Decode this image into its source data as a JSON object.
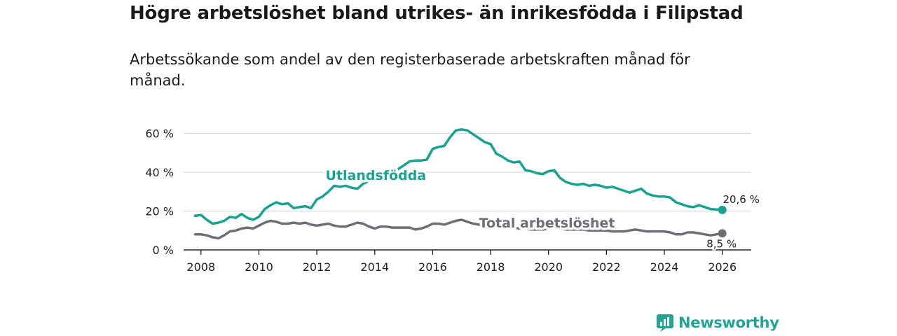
{
  "title": "Högre arbetslöshet bland utrikes- än inrikesfödda i Filipstad",
  "subtitle": "Arbetssökande som andel av den registerbaserade arbetskraften månad för månad.",
  "brand": "Newsworthy",
  "colors": {
    "foreign": "#17a391",
    "total": "#6e6e76",
    "grid": "#d9d9d9",
    "axis": "#222222",
    "brand": "#23a596"
  },
  "chart_data": {
    "type": "line",
    "title": "Högre arbetslöshet bland utrikes- än inrikesfödda i Filipstad",
    "xlabel": "",
    "ylabel": "",
    "xlim": [
      2007.4,
      2027.0
    ],
    "ylim": [
      0,
      60
    ],
    "x_ticks": [
      2008,
      2010,
      2012,
      2014,
      2016,
      2018,
      2020,
      2022,
      2024,
      2026
    ],
    "x_tick_labels": [
      "2008",
      "2010",
      "2012",
      "2014",
      "2016",
      "2018",
      "2020",
      "2022",
      "2024",
      "2026"
    ],
    "y_ticks": [
      0,
      20,
      40,
      60
    ],
    "y_tick_labels": [
      "0 %",
      "20 %",
      "40 %",
      "60 %"
    ],
    "grid": true,
    "series": [
      {
        "name": "Utlandsfödda",
        "label": "Utlandsfödda",
        "end_label": "20,6 %",
        "color": "#17a391",
        "points": [
          [
            2007.8,
            17.5
          ],
          [
            2008.0,
            18.0
          ],
          [
            2008.2,
            15.5
          ],
          [
            2008.4,
            13.5
          ],
          [
            2008.6,
            14.0
          ],
          [
            2008.8,
            15.0
          ],
          [
            2009.0,
            17.0
          ],
          [
            2009.2,
            16.5
          ],
          [
            2009.4,
            18.5
          ],
          [
            2009.6,
            16.5
          ],
          [
            2009.8,
            15.5
          ],
          [
            2010.0,
            17.0
          ],
          [
            2010.2,
            21.0
          ],
          [
            2010.4,
            23.0
          ],
          [
            2010.6,
            24.5
          ],
          [
            2010.8,
            23.5
          ],
          [
            2011.0,
            24.0
          ],
          [
            2011.2,
            21.5
          ],
          [
            2011.4,
            22.0
          ],
          [
            2011.6,
            22.5
          ],
          [
            2011.8,
            21.5
          ],
          [
            2012.0,
            26.0
          ],
          [
            2012.2,
            27.5
          ],
          [
            2012.4,
            30.0
          ],
          [
            2012.6,
            33.0
          ],
          [
            2012.8,
            32.5
          ],
          [
            2013.0,
            33.0
          ],
          [
            2013.2,
            32.0
          ],
          [
            2013.4,
            31.5
          ],
          [
            2013.6,
            34.0
          ],
          [
            2013.8,
            35.5
          ],
          [
            2014.0,
            36.5
          ],
          [
            2014.2,
            37.5
          ],
          [
            2014.4,
            38.5
          ],
          [
            2014.6,
            40.0
          ],
          [
            2014.8,
            41.5
          ],
          [
            2015.0,
            43.5
          ],
          [
            2015.2,
            45.5
          ],
          [
            2015.4,
            46.0
          ],
          [
            2015.6,
            46.0
          ],
          [
            2015.8,
            46.5
          ],
          [
            2016.0,
            52.0
          ],
          [
            2016.2,
            53.0
          ],
          [
            2016.4,
            53.5
          ],
          [
            2016.6,
            58.0
          ],
          [
            2016.8,
            61.5
          ],
          [
            2017.0,
            62.0
          ],
          [
            2017.2,
            61.5
          ],
          [
            2017.4,
            59.5
          ],
          [
            2017.6,
            57.5
          ],
          [
            2017.8,
            55.5
          ],
          [
            2018.0,
            54.5
          ],
          [
            2018.2,
            49.5
          ],
          [
            2018.4,
            48.0
          ],
          [
            2018.6,
            46.0
          ],
          [
            2018.8,
            45.0
          ],
          [
            2019.0,
            45.5
          ],
          [
            2019.2,
            41.0
          ],
          [
            2019.4,
            40.5
          ],
          [
            2019.6,
            39.5
          ],
          [
            2019.8,
            39.0
          ],
          [
            2020.0,
            40.5
          ],
          [
            2020.2,
            41.0
          ],
          [
            2020.4,
            37.0
          ],
          [
            2020.6,
            35.0
          ],
          [
            2020.8,
            34.0
          ],
          [
            2021.0,
            33.5
          ],
          [
            2021.2,
            34.0
          ],
          [
            2021.4,
            33.0
          ],
          [
            2021.6,
            33.5
          ],
          [
            2021.8,
            33.0
          ],
          [
            2022.0,
            32.0
          ],
          [
            2022.2,
            32.5
          ],
          [
            2022.4,
            31.5
          ],
          [
            2022.6,
            30.5
          ],
          [
            2022.8,
            29.5
          ],
          [
            2023.0,
            30.5
          ],
          [
            2023.2,
            31.5
          ],
          [
            2023.4,
            29.0
          ],
          [
            2023.6,
            28.0
          ],
          [
            2023.8,
            27.5
          ],
          [
            2024.0,
            27.5
          ],
          [
            2024.2,
            27.0
          ],
          [
            2024.4,
            24.5
          ],
          [
            2024.6,
            23.5
          ],
          [
            2024.8,
            22.5
          ],
          [
            2025.0,
            22.0
          ],
          [
            2025.2,
            23.0
          ],
          [
            2025.4,
            22.0
          ],
          [
            2025.6,
            21.0
          ],
          [
            2025.8,
            20.8
          ],
          [
            2026.0,
            20.6
          ]
        ]
      },
      {
        "name": "Total arbetslöshet",
        "label": "Total arbetslöshet",
        "end_label": "8,5 %",
        "color": "#6e6e76",
        "points": [
          [
            2007.8,
            8.0
          ],
          [
            2008.0,
            8.0
          ],
          [
            2008.2,
            7.5
          ],
          [
            2008.4,
            6.5
          ],
          [
            2008.6,
            6.0
          ],
          [
            2008.8,
            7.5
          ],
          [
            2009.0,
            9.5
          ],
          [
            2009.2,
            10.0
          ],
          [
            2009.4,
            11.0
          ],
          [
            2009.6,
            11.5
          ],
          [
            2009.8,
            11.0
          ],
          [
            2010.0,
            12.5
          ],
          [
            2010.2,
            14.0
          ],
          [
            2010.4,
            15.0
          ],
          [
            2010.6,
            14.5
          ],
          [
            2010.8,
            13.5
          ],
          [
            2011.0,
            13.5
          ],
          [
            2011.2,
            14.0
          ],
          [
            2011.4,
            13.5
          ],
          [
            2011.6,
            14.0
          ],
          [
            2011.8,
            13.0
          ],
          [
            2012.0,
            12.5
          ],
          [
            2012.2,
            13.0
          ],
          [
            2012.4,
            13.5
          ],
          [
            2012.6,
            12.5
          ],
          [
            2012.8,
            12.0
          ],
          [
            2013.0,
            12.0
          ],
          [
            2013.2,
            13.0
          ],
          [
            2013.4,
            14.0
          ],
          [
            2013.6,
            13.5
          ],
          [
            2013.8,
            12.0
          ],
          [
            2014.0,
            11.0
          ],
          [
            2014.2,
            12.0
          ],
          [
            2014.4,
            12.0
          ],
          [
            2014.6,
            11.5
          ],
          [
            2014.8,
            11.5
          ],
          [
            2015.0,
            11.5
          ],
          [
            2015.2,
            11.5
          ],
          [
            2015.4,
            10.5
          ],
          [
            2015.6,
            11.0
          ],
          [
            2015.8,
            12.0
          ],
          [
            2016.0,
            13.5
          ],
          [
            2016.2,
            13.5
          ],
          [
            2016.4,
            13.0
          ],
          [
            2016.6,
            14.0
          ],
          [
            2016.8,
            15.0
          ],
          [
            2017.0,
            15.5
          ],
          [
            2017.2,
            14.5
          ],
          [
            2017.4,
            13.5
          ],
          [
            2017.6,
            13.0
          ],
          [
            2017.8,
            12.5
          ],
          [
            2018.0,
            12.5
          ],
          [
            2018.2,
            12.0
          ],
          [
            2018.4,
            11.5
          ],
          [
            2018.6,
            11.5
          ],
          [
            2018.8,
            11.5
          ],
          [
            2019.0,
            11.0
          ],
          [
            2019.2,
            11.0
          ],
          [
            2019.4,
            10.5
          ],
          [
            2019.6,
            10.5
          ],
          [
            2019.8,
            10.5
          ],
          [
            2020.0,
            11.0
          ],
          [
            2020.2,
            11.5
          ],
          [
            2020.4,
            11.0
          ],
          [
            2020.6,
            10.5
          ],
          [
            2020.8,
            10.5
          ],
          [
            2021.0,
            10.5
          ],
          [
            2021.2,
            10.5
          ],
          [
            2021.4,
            10.0
          ],
          [
            2021.6,
            10.0
          ],
          [
            2021.8,
            10.0
          ],
          [
            2022.0,
            10.0
          ],
          [
            2022.2,
            9.5
          ],
          [
            2022.4,
            9.5
          ],
          [
            2022.6,
            9.5
          ],
          [
            2022.8,
            10.0
          ],
          [
            2023.0,
            10.5
          ],
          [
            2023.2,
            10.0
          ],
          [
            2023.4,
            9.5
          ],
          [
            2023.6,
            9.5
          ],
          [
            2023.8,
            9.5
          ],
          [
            2024.0,
            9.5
          ],
          [
            2024.2,
            9.0
          ],
          [
            2024.4,
            8.0
          ],
          [
            2024.6,
            8.0
          ],
          [
            2024.8,
            9.0
          ],
          [
            2025.0,
            9.0
          ],
          [
            2025.2,
            8.5
          ],
          [
            2025.4,
            8.0
          ],
          [
            2025.6,
            7.5
          ],
          [
            2025.8,
            8.0
          ],
          [
            2026.0,
            8.5
          ]
        ]
      }
    ]
  }
}
